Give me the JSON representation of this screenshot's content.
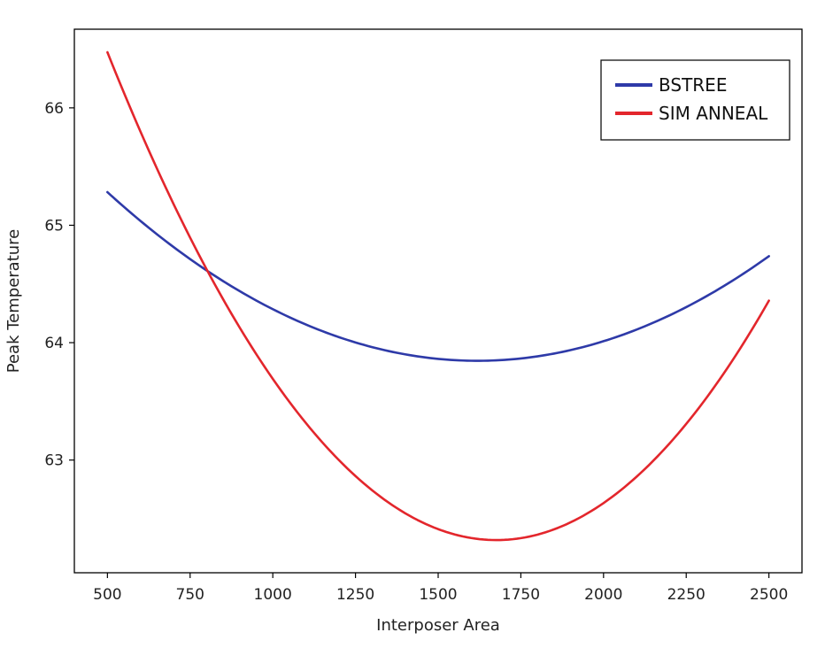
{
  "chart_data": {
    "type": "line",
    "xlabel": "Interposer Area",
    "ylabel": "Peak Temperature",
    "xlim": [
      400,
      2600
    ],
    "ylim": [
      62.04,
      66.67
    ],
    "x_ticks": [
      500,
      750,
      1000,
      1250,
      1500,
      1750,
      2000,
      2250,
      2500
    ],
    "y_ticks": [
      63,
      64,
      65,
      66
    ],
    "x": [
      500,
      750,
      1000,
      1250,
      1500,
      1750,
      2000,
      2250,
      2500
    ],
    "grid": false,
    "legend_position": "top-right",
    "series": [
      {
        "name": "BSTREE",
        "color": "#2e3aa8",
        "values": [
          65.29,
          64.71,
          64.28,
          63.99,
          63.86,
          63.87,
          64.02,
          64.32,
          64.72
        ]
      },
      {
        "name": "SIM ANNEAL",
        "color": "#e3262c",
        "values": [
          66.47,
          64.87,
          63.71,
          62.91,
          62.41,
          62.31,
          62.61,
          63.3,
          64.38
        ]
      }
    ]
  }
}
